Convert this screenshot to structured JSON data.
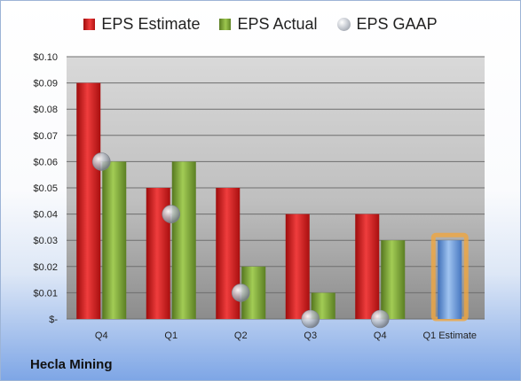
{
  "company": "Hecla Mining",
  "legend": {
    "estimate": "EPS Estimate",
    "actual": "EPS Actual",
    "gaap": "EPS GAAP"
  },
  "colors": {
    "estimate": "#d42020",
    "actual": "#7ea33a",
    "gaap": "#b8bdc5",
    "projected_estimate": "#6a9ad8",
    "projected_highlight": "#f0a640"
  },
  "chart_data": {
    "type": "bar",
    "categories": [
      "Q4",
      "Q1",
      "Q2",
      "Q3",
      "Q4",
      "Q1 Estimate"
    ],
    "series": [
      {
        "name": "EPS Estimate",
        "values": [
          0.09,
          0.05,
          0.05,
          0.04,
          0.04,
          null
        ]
      },
      {
        "name": "EPS Actual",
        "values": [
          0.06,
          0.06,
          0.02,
          0.01,
          0.03,
          0.03
        ]
      },
      {
        "name": "EPS GAAP",
        "values": [
          0.06,
          0.04,
          0.01,
          0.0,
          0.0,
          null
        ]
      }
    ],
    "projected_category": "Q1 Estimate",
    "ylim": [
      0,
      0.1
    ],
    "yticks": [
      0,
      0.01,
      0.02,
      0.03,
      0.04,
      0.05,
      0.06,
      0.07,
      0.08,
      0.09,
      0.1
    ],
    "ytick_labels": [
      "$-",
      "$0.01",
      "$0.02",
      "$0.03",
      "$0.04",
      "$0.05",
      "$0.06",
      "$0.07",
      "$0.08",
      "$0.09",
      "$0.10"
    ],
    "grid": true,
    "legend_position": "top"
  }
}
